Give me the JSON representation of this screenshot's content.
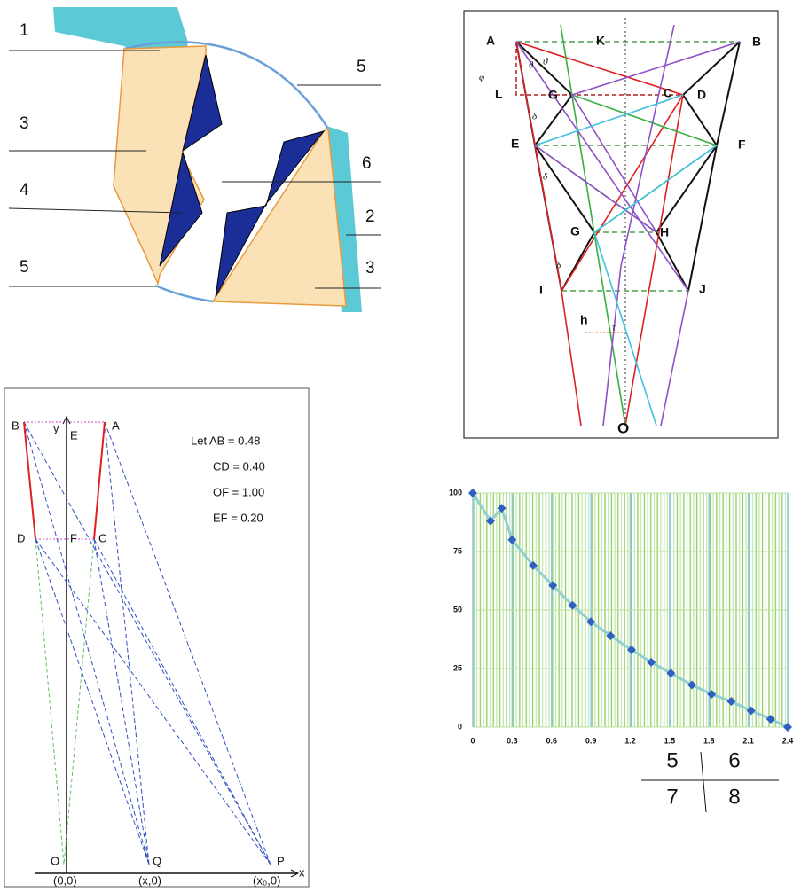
{
  "panel_a": {
    "labels": [
      "1",
      "3",
      "4",
      "5",
      "5",
      "6",
      "2",
      "3"
    ]
  },
  "panel_b": {
    "labels": [
      "A",
      "K",
      "B",
      "L",
      "G",
      "C",
      "D",
      "E",
      "F",
      "G",
      "H",
      "I",
      "J",
      "h",
      "O"
    ],
    "angles": [
      "φ",
      "θ",
      "ϑ",
      "δ",
      "δ",
      "δ",
      "τ"
    ]
  },
  "panel_c": {
    "points": [
      "B",
      "y",
      "E",
      "A",
      "D",
      "F",
      "C",
      "O",
      "Q",
      "P",
      "x"
    ],
    "axis_labels": [
      "(0,0)",
      "(x,0)",
      "(x₀,0)"
    ],
    "notes": [
      "Let AB = 0.48",
      "CD = 0.40",
      "OF = 1.00",
      "EF = 0.20"
    ]
  },
  "chart_data": {
    "type": "line",
    "x": [
      0,
      0.135,
      0.22,
      0.3,
      0.46,
      0.61,
      0.76,
      0.9,
      1.05,
      1.21,
      1.36,
      1.51,
      1.67,
      1.82,
      1.97,
      2.12,
      2.27,
      2.4
    ],
    "values": [
      100,
      88,
      93.5,
      80,
      69,
      60.5,
      52,
      45,
      39,
      33,
      27.7,
      23,
      18,
      14,
      11,
      7,
      3.4,
      0
    ],
    "color": "#2f5fbf",
    "line_color": "#8fd0d0",
    "xlim": [
      0,
      2.4
    ],
    "ylim": [
      0,
      100
    ],
    "xticks": [
      0,
      0.3,
      0.6,
      0.9,
      1.2,
      1.5,
      1.8,
      2.1,
      2.4
    ],
    "yticks": [
      0,
      25,
      50,
      75,
      100
    ],
    "grid": true
  },
  "table": {
    "rows": [
      [
        5,
        6
      ],
      [
        7,
        8
      ]
    ]
  }
}
